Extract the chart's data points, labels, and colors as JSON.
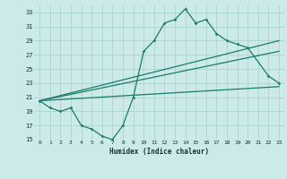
{
  "xlabel": "Humidex (Indice chaleur)",
  "bg_color": "#cceae8",
  "grid_color": "#aad4d0",
  "line_color": "#1a7a6e",
  "xlim": [
    -0.5,
    23.5
  ],
  "ylim": [
    15,
    34
  ],
  "yticks": [
    15,
    17,
    19,
    21,
    23,
    25,
    27,
    29,
    31,
    33
  ],
  "xticks": [
    0,
    1,
    2,
    3,
    4,
    5,
    6,
    7,
    8,
    9,
    10,
    11,
    12,
    13,
    14,
    15,
    16,
    17,
    18,
    19,
    20,
    21,
    22,
    23
  ],
  "line1_x": [
    0,
    1,
    2,
    3,
    4,
    5,
    6,
    7,
    8,
    9,
    10,
    11,
    12,
    13,
    14,
    15,
    16,
    17,
    18,
    19,
    20,
    22,
    23
  ],
  "line1_y": [
    20.5,
    19.5,
    19.0,
    19.5,
    17.0,
    16.5,
    15.5,
    15.0,
    17.0,
    21.0,
    27.5,
    29.0,
    31.5,
    32.0,
    33.5,
    31.5,
    32.0,
    30.0,
    29.0,
    28.5,
    28.0,
    24.0,
    23.0
  ],
  "line2_x": [
    0,
    23
  ],
  "line2_y": [
    20.5,
    29.0
  ],
  "line3_x": [
    0,
    23
  ],
  "line3_y": [
    20.5,
    27.5
  ],
  "line4_x": [
    0,
    23
  ],
  "line4_y": [
    20.5,
    22.5
  ]
}
